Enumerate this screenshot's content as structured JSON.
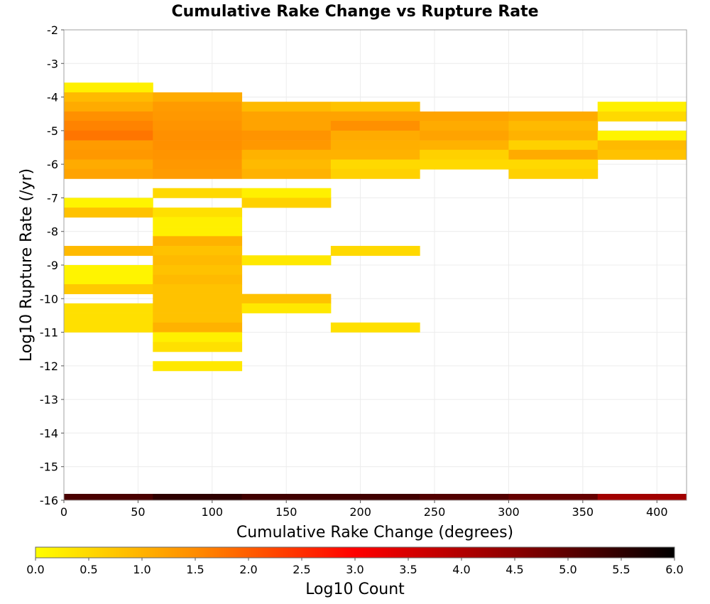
{
  "chart_data": {
    "type": "heatmap",
    "title": "Cumulative Rake Change vs Rupture Rate",
    "xlabel": "Cumulative Rake Change (degrees)",
    "ylabel": "Log10 Rupture Rate (/yr)",
    "xlim": [
      0,
      420
    ],
    "ylim": [
      -16,
      -2
    ],
    "x_ticks": [
      "0",
      "50",
      "100",
      "150",
      "200",
      "250",
      "300",
      "350",
      "400"
    ],
    "x_tick_values": [
      0,
      50,
      100,
      150,
      200,
      250,
      300,
      350,
      400
    ],
    "y_ticks": [
      "-2",
      "-3",
      "-4",
      "-5",
      "-6",
      "-7",
      "-8",
      "-9",
      "-10",
      "-11",
      "-12",
      "-13",
      "-14",
      "-15",
      "-16"
    ],
    "y_tick_values": [
      -2,
      -3,
      -4,
      -5,
      -6,
      -7,
      -8,
      -9,
      -10,
      -11,
      -12,
      -13,
      -14,
      -15,
      -16
    ],
    "grid": true,
    "x_bin_width": 60,
    "y_bin_height": 0.286,
    "colorbar": {
      "label": "Log10 Count",
      "range": [
        0,
        6
      ],
      "ticks": [
        "0.0",
        "0.5",
        "1.0",
        "1.5",
        "2.0",
        "2.5",
        "3.0",
        "3.5",
        "4.0",
        "4.5",
        "5.0",
        "5.5",
        "6.0"
      ],
      "tick_values": [
        0,
        0.5,
        1,
        1.5,
        2,
        2.5,
        3,
        3.5,
        4,
        4.5,
        5,
        5.5,
        6
      ],
      "colors": [
        "#ffff00",
        "#ff8c00",
        "#ff0000",
        "#8b0000",
        "#000000"
      ]
    },
    "cells": [
      [
        0,
        -3.57,
        0.2
      ],
      [
        0,
        -3.86,
        0.9
      ],
      [
        0,
        -4.14,
        1.1
      ],
      [
        0,
        -4.43,
        1.45
      ],
      [
        0,
        -4.71,
        1.6
      ],
      [
        0,
        -5.0,
        1.75
      ],
      [
        0,
        -5.29,
        1.3
      ],
      [
        0,
        -5.57,
        1.35
      ],
      [
        0,
        -5.86,
        1.1
      ],
      [
        0,
        -6.14,
        1.2
      ],
      [
        0,
        -7.0,
        0.15
      ],
      [
        0,
        -7.29,
        0.8
      ],
      [
        0,
        -8.43,
        0.9
      ],
      [
        0,
        -9.0,
        0.15
      ],
      [
        0,
        -9.29,
        0.15
      ],
      [
        0,
        -9.57,
        0.7
      ],
      [
        0,
        -10.14,
        0.4
      ],
      [
        0,
        -10.43,
        0.4
      ],
      [
        0,
        -10.71,
        0.4
      ],
      [
        60,
        -3.86,
        1.1
      ],
      [
        60,
        -4.14,
        1.3
      ],
      [
        60,
        -4.43,
        1.35
      ],
      [
        60,
        -4.71,
        1.4
      ],
      [
        60,
        -5.0,
        1.45
      ],
      [
        60,
        -5.29,
        1.45
      ],
      [
        60,
        -5.57,
        1.4
      ],
      [
        60,
        -5.86,
        1.35
      ],
      [
        60,
        -6.14,
        1.3
      ],
      [
        60,
        -6.71,
        0.5
      ],
      [
        60,
        -7.29,
        0.4
      ],
      [
        60,
        -7.57,
        0.2
      ],
      [
        60,
        -7.86,
        0.2
      ],
      [
        60,
        -8.14,
        1.0
      ],
      [
        60,
        -8.43,
        0.8
      ],
      [
        60,
        -8.71,
        0.9
      ],
      [
        60,
        -9.0,
        0.8
      ],
      [
        60,
        -9.29,
        0.9
      ],
      [
        60,
        -9.57,
        0.8
      ],
      [
        60,
        -9.86,
        0.8
      ],
      [
        60,
        -10.14,
        0.8
      ],
      [
        60,
        -10.43,
        0.8
      ],
      [
        60,
        -10.71,
        1.0
      ],
      [
        60,
        -11.0,
        0.2
      ],
      [
        60,
        -11.29,
        0.4
      ],
      [
        60,
        -11.86,
        0.3
      ],
      [
        120,
        -4.14,
        0.9
      ],
      [
        120,
        -4.43,
        1.2
      ],
      [
        120,
        -4.71,
        1.2
      ],
      [
        120,
        -5.0,
        1.4
      ],
      [
        120,
        -5.29,
        1.35
      ],
      [
        120,
        -5.57,
        1.0
      ],
      [
        120,
        -5.86,
        0.9
      ],
      [
        120,
        -6.14,
        1.0
      ],
      [
        120,
        -6.71,
        0.2
      ],
      [
        120,
        -7.0,
        0.6
      ],
      [
        120,
        -8.71,
        0.3
      ],
      [
        120,
        -9.86,
        0.8
      ],
      [
        120,
        -10.14,
        0.3
      ],
      [
        180,
        -4.14,
        0.8
      ],
      [
        180,
        -4.43,
        1.2
      ],
      [
        180,
        -4.71,
        1.45
      ],
      [
        180,
        -5.0,
        1.1
      ],
      [
        180,
        -5.29,
        1.05
      ],
      [
        180,
        -5.57,
        1.0
      ],
      [
        180,
        -5.86,
        0.5
      ],
      [
        180,
        -6.14,
        0.6
      ],
      [
        180,
        -8.43,
        0.5
      ],
      [
        180,
        -10.71,
        0.4
      ],
      [
        240,
        -4.43,
        1.2
      ],
      [
        240,
        -4.71,
        1.1
      ],
      [
        240,
        -5.0,
        1.2
      ],
      [
        240,
        -5.29,
        1.0
      ],
      [
        240,
        -5.57,
        0.6
      ],
      [
        240,
        -5.86,
        0.5
      ],
      [
        300,
        -4.43,
        1.1
      ],
      [
        300,
        -4.71,
        0.9
      ],
      [
        300,
        -5.0,
        1.0
      ],
      [
        300,
        -5.29,
        0.6
      ],
      [
        300,
        -5.57,
        1.1
      ],
      [
        300,
        -5.86,
        0.5
      ],
      [
        300,
        -6.14,
        0.6
      ],
      [
        360,
        -4.14,
        0.2
      ],
      [
        360,
        -4.43,
        0.5
      ],
      [
        360,
        -5.0,
        0.15
      ],
      [
        360,
        -5.29,
        0.9
      ],
      [
        360,
        -5.57,
        0.8
      ],
      [
        0,
        -16.0,
        5.2
      ],
      [
        60,
        -16.0,
        5.5
      ],
      [
        120,
        -16.0,
        5.3
      ],
      [
        180,
        -16.0,
        5.3
      ],
      [
        240,
        -16.0,
        5.1
      ],
      [
        300,
        -16.0,
        4.9
      ],
      [
        360,
        -16.0,
        4.2
      ]
    ]
  }
}
